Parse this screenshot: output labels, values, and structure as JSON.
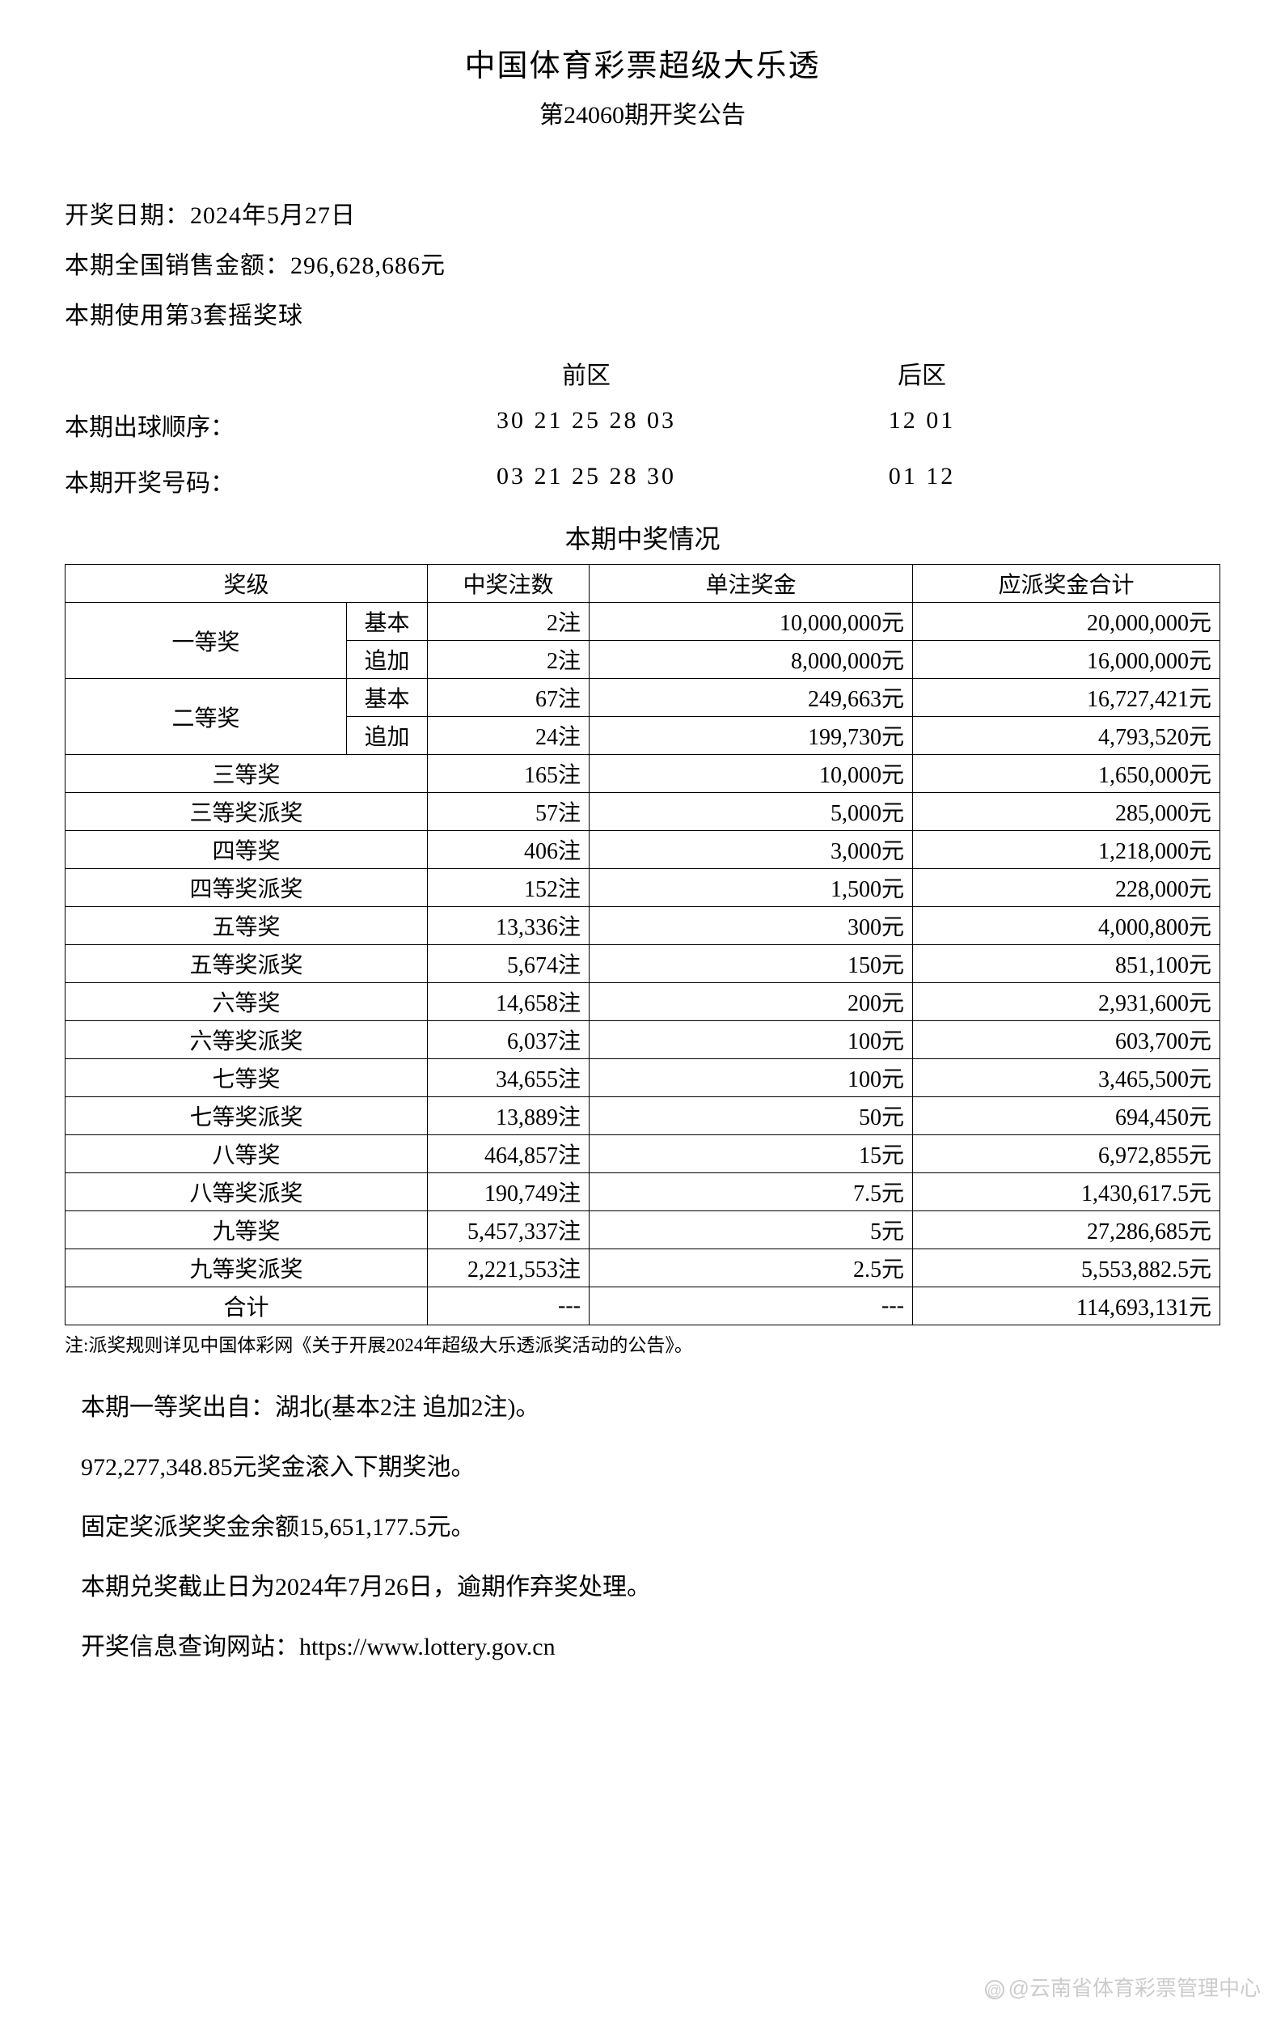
{
  "header": {
    "title": "中国体育彩票超级大乐透",
    "subtitle": "第24060期开奖公告"
  },
  "info": {
    "draw_date": "开奖日期：2024年5月27日",
    "sales_amount": "本期全国销售金额：296,628,686元",
    "ball_set": "本期使用第3套摇奖球"
  },
  "zones": {
    "front_label": "前区",
    "back_label": "后区",
    "draw_order_label": "本期出球顺序：",
    "draw_order_front": "30 21 25 28 03",
    "draw_order_back": "12 01",
    "winning_label": "本期开奖号码：",
    "winning_front": "03 21 25 28 30",
    "winning_back": "01 12"
  },
  "prize_section_title": "本期中奖情况",
  "table": {
    "headers": {
      "level": "奖级",
      "count": "中奖注数",
      "amount": "单注奖金",
      "total": "应派奖金合计"
    },
    "level1_label": "一等奖",
    "level2_label": "二等奖",
    "sub_basic": "基本",
    "sub_add": "追加",
    "rows": [
      {
        "count": "2注",
        "amount": "10,000,000元",
        "total": "20,000,000元"
      },
      {
        "count": "2注",
        "amount": "8,000,000元",
        "total": "16,000,000元"
      },
      {
        "count": "67注",
        "amount": "249,663元",
        "total": "16,727,421元"
      },
      {
        "count": "24注",
        "amount": "199,730元",
        "total": "4,793,520元"
      }
    ],
    "simple_rows": [
      {
        "level": "三等奖",
        "count": "165注",
        "amount": "10,000元",
        "total": "1,650,000元"
      },
      {
        "level": "三等奖派奖",
        "count": "57注",
        "amount": "5,000元",
        "total": "285,000元"
      },
      {
        "level": "四等奖",
        "count": "406注",
        "amount": "3,000元",
        "total": "1,218,000元"
      },
      {
        "level": "四等奖派奖",
        "count": "152注",
        "amount": "1,500元",
        "total": "228,000元"
      },
      {
        "level": "五等奖",
        "count": "13,336注",
        "amount": "300元",
        "total": "4,000,800元"
      },
      {
        "level": "五等奖派奖",
        "count": "5,674注",
        "amount": "150元",
        "total": "851,100元"
      },
      {
        "level": "六等奖",
        "count": "14,658注",
        "amount": "200元",
        "total": "2,931,600元"
      },
      {
        "level": "六等奖派奖",
        "count": "6,037注",
        "amount": "100元",
        "total": "603,700元"
      },
      {
        "level": "七等奖",
        "count": "34,655注",
        "amount": "100元",
        "total": "3,465,500元"
      },
      {
        "level": "七等奖派奖",
        "count": "13,889注",
        "amount": "50元",
        "total": "694,450元"
      },
      {
        "level": "八等奖",
        "count": "464,857注",
        "amount": "15元",
        "total": "6,972,855元"
      },
      {
        "level": "八等奖派奖",
        "count": "190,749注",
        "amount": "7.5元",
        "total": "1,430,617.5元"
      },
      {
        "level": "九等奖",
        "count": "5,457,337注",
        "amount": "5元",
        "total": "27,286,685元"
      },
      {
        "level": "九等奖派奖",
        "count": "2,221,553注",
        "amount": "2.5元",
        "total": "5,553,882.5元"
      }
    ],
    "total_row": {
      "level": "合计",
      "count": "---",
      "amount": "---",
      "total": "114,693,131元"
    }
  },
  "footnote": "注:派奖规则详见中国体彩网《关于开展2024年超级大乐透派奖活动的公告》。",
  "bottom": {
    "line1": "本期一等奖出自：湖北(基本2注 追加2注)。",
    "line2": "972,277,348.85元奖金滚入下期奖池。",
    "line3": "固定奖派奖奖金余额15,651,177.5元。",
    "line4": "本期兑奖截止日为2024年7月26日，逾期作弃奖处理。",
    "line5": "开奖信息查询网站：https://www.lottery.gov.cn"
  },
  "watermark": "@云南省体育彩票管理中心"
}
